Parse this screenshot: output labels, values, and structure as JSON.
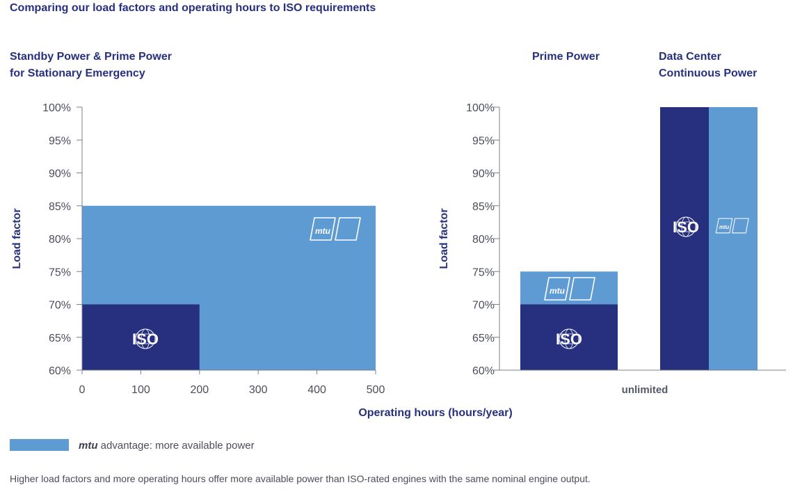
{
  "title": "Comparing our load factors and operating hours to ISO requirements",
  "colors": {
    "navy": "#27307f",
    "light_blue": "#5f9bd3",
    "axis": "#7a7f8c",
    "text": "#4a4e5a"
  },
  "panels": {
    "standby": {
      "title_line1": "Standby Power & Prime Power",
      "title_line2": "for Stationary Emergency"
    },
    "prime": {
      "title": "Prime Power"
    },
    "datacenter": {
      "title_line1": "Data Center",
      "title_line2": "Continuous Power"
    }
  },
  "icons": {
    "iso": "ISO",
    "mtu": "mtu"
  },
  "chart_data": [
    {
      "type": "area",
      "title": "Standby Power & Prime Power for Stationary Emergency",
      "xlabel": "Operating hours (hours/year)",
      "ylabel": "Load factor",
      "xlim": [
        0,
        500
      ],
      "ylim": [
        60,
        100
      ],
      "x_ticks": [
        "0",
        "100",
        "200",
        "300",
        "400",
        "500"
      ],
      "y_ticks": [
        "60%",
        "65%",
        "70%",
        "75%",
        "80%",
        "85%",
        "90%",
        "95%",
        "100%"
      ],
      "series": [
        {
          "name": "mtu",
          "max_hours": 500,
          "max_load_factor": 85,
          "color": "#5f9bd3"
        },
        {
          "name": "ISO",
          "max_hours": 200,
          "max_load_factor": 70,
          "color": "#27307f"
        }
      ]
    },
    {
      "type": "bar",
      "xlabel": "unlimited",
      "ylabel": "Load factor",
      "ylim": [
        60,
        100
      ],
      "y_ticks": [
        "60%",
        "65%",
        "70%",
        "75%",
        "80%",
        "85%",
        "90%",
        "95%",
        "100%"
      ],
      "categories": [
        "Prime Power",
        "Data Center Continuous Power"
      ],
      "series": [
        {
          "name": "ISO",
          "values": [
            70,
            100
          ]
        },
        {
          "name": "mtu",
          "values": [
            75,
            100
          ]
        }
      ]
    }
  ],
  "legend": {
    "brand": "mtu",
    "text": "advantage: more available power"
  },
  "footnote": "Higher load factors and more operating hours offer more available power than ISO-rated engines with the same nominal engine output."
}
